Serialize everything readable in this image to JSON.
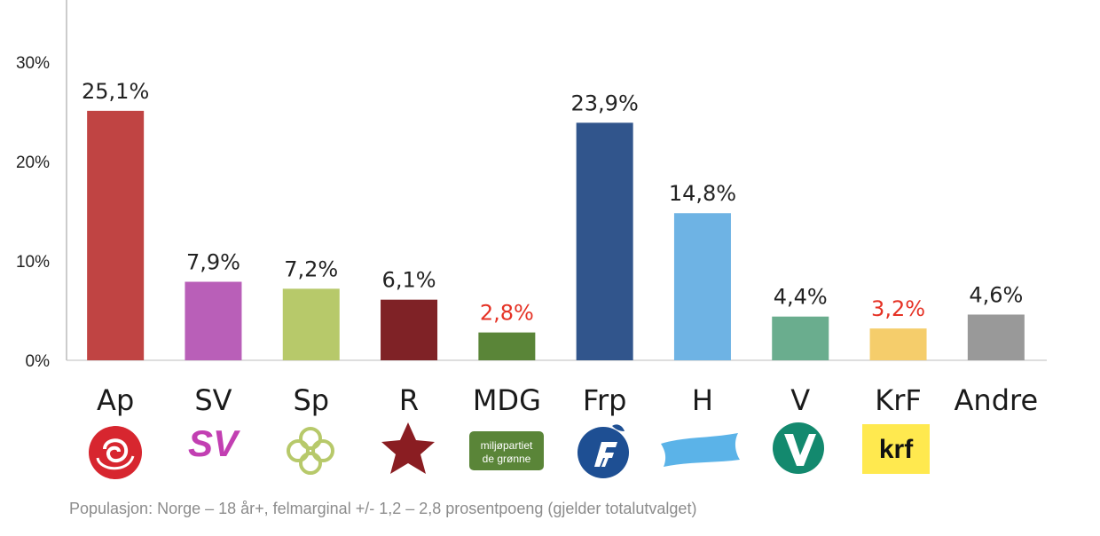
{
  "chart_data": {
    "type": "bar",
    "categories": [
      "Ap",
      "SV",
      "Sp",
      "R",
      "MDG",
      "Frp",
      "H",
      "V",
      "KrF",
      "Andre"
    ],
    "values": [
      25.1,
      7.9,
      7.2,
      6.1,
      2.8,
      23.9,
      14.8,
      4.4,
      3.2,
      4.6
    ],
    "value_labels": [
      "25,1%",
      "7,9%",
      "7,2%",
      "6,1%",
      "2,8%",
      "23,9%",
      "14,8%",
      "4,4%",
      "3,2%",
      "4,6%"
    ],
    "label_colors": [
      "#222222",
      "#222222",
      "#222222",
      "#222222",
      "#e53225",
      "#222222",
      "#222222",
      "#222222",
      "#e53225",
      "#222222"
    ],
    "bar_colors": [
      "#c04443",
      "#b95fb8",
      "#b7c96a",
      "#7f2226",
      "#5a8538",
      "#31558c",
      "#6eb3e4",
      "#6aad8e",
      "#f5cd6b",
      "#999999"
    ],
    "logos": [
      "ap-rose-icon",
      "sv-logo-icon",
      "sp-clover-icon",
      "r-star-icon",
      "mdg-logo-icon",
      "frp-logo-icon",
      "h-flag-icon",
      "v-logo-icon",
      "krf-logo-icon",
      ""
    ],
    "yticks": [
      0,
      10,
      20,
      30
    ],
    "ytick_labels": [
      "0%",
      "10%",
      "20%",
      "30%"
    ],
    "ylim": [
      0,
      35
    ],
    "grid": false,
    "title": "",
    "xlabel": "",
    "ylabel": ""
  },
  "logo_text": {
    "sv": "SV",
    "mdg_line1": "miljøpartiet",
    "mdg_line2": "de grønne",
    "krf": "krf"
  },
  "footnote": "Populasjon: Norge – 18 år+, felmarginal +/- 1,2 – 2,8 prosentpoeng (gjelder totalutvalget)"
}
